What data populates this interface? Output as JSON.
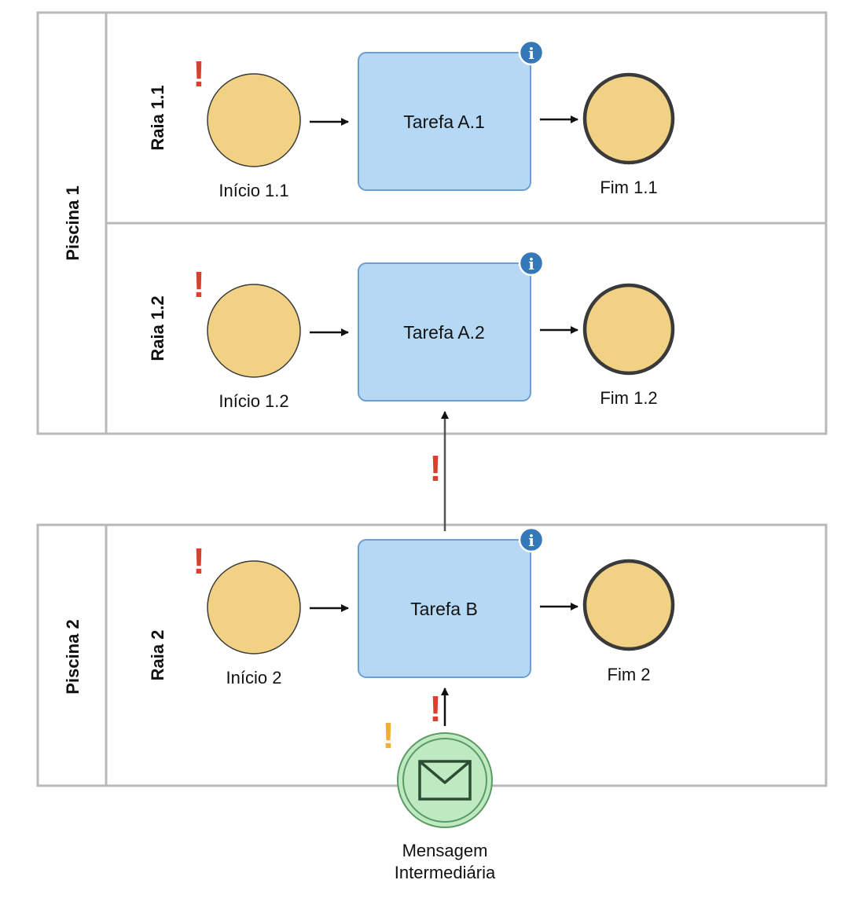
{
  "pools": [
    {
      "label": "Piscina 1",
      "lanes": [
        "Raia 1.1",
        "Raia 1.2"
      ]
    },
    {
      "label": "Piscina 2",
      "lanes": [
        "Raia 2"
      ]
    }
  ],
  "start_events": [
    "Início 1.1",
    "Início 1.2",
    "Início 2"
  ],
  "tasks": [
    "Tarefa A.1",
    "Tarefa A.2",
    "Tarefa B"
  ],
  "end_events": [
    "Fim 1.1",
    "Fim 1.2",
    "Fim 2"
  ],
  "message_event": {
    "label_line1": "Mensagem",
    "label_line2": "Intermediária"
  },
  "markers": {
    "warning_symbol": "!",
    "info_symbol": "i"
  },
  "colors": {
    "pool_border": "#b8b8b8",
    "event_fill": "#f1d184",
    "event_stroke": "#3a3a3a",
    "task_fill": "#b5d9f5",
    "task_stroke": "#6c9ed1",
    "message_fill": "#bfe9c0",
    "message_stroke": "#5b9a63",
    "error_marker": "#d9412f",
    "warning_marker": "#f2ae32",
    "info_badge": "#3578b8",
    "arrow": "#111111"
  }
}
